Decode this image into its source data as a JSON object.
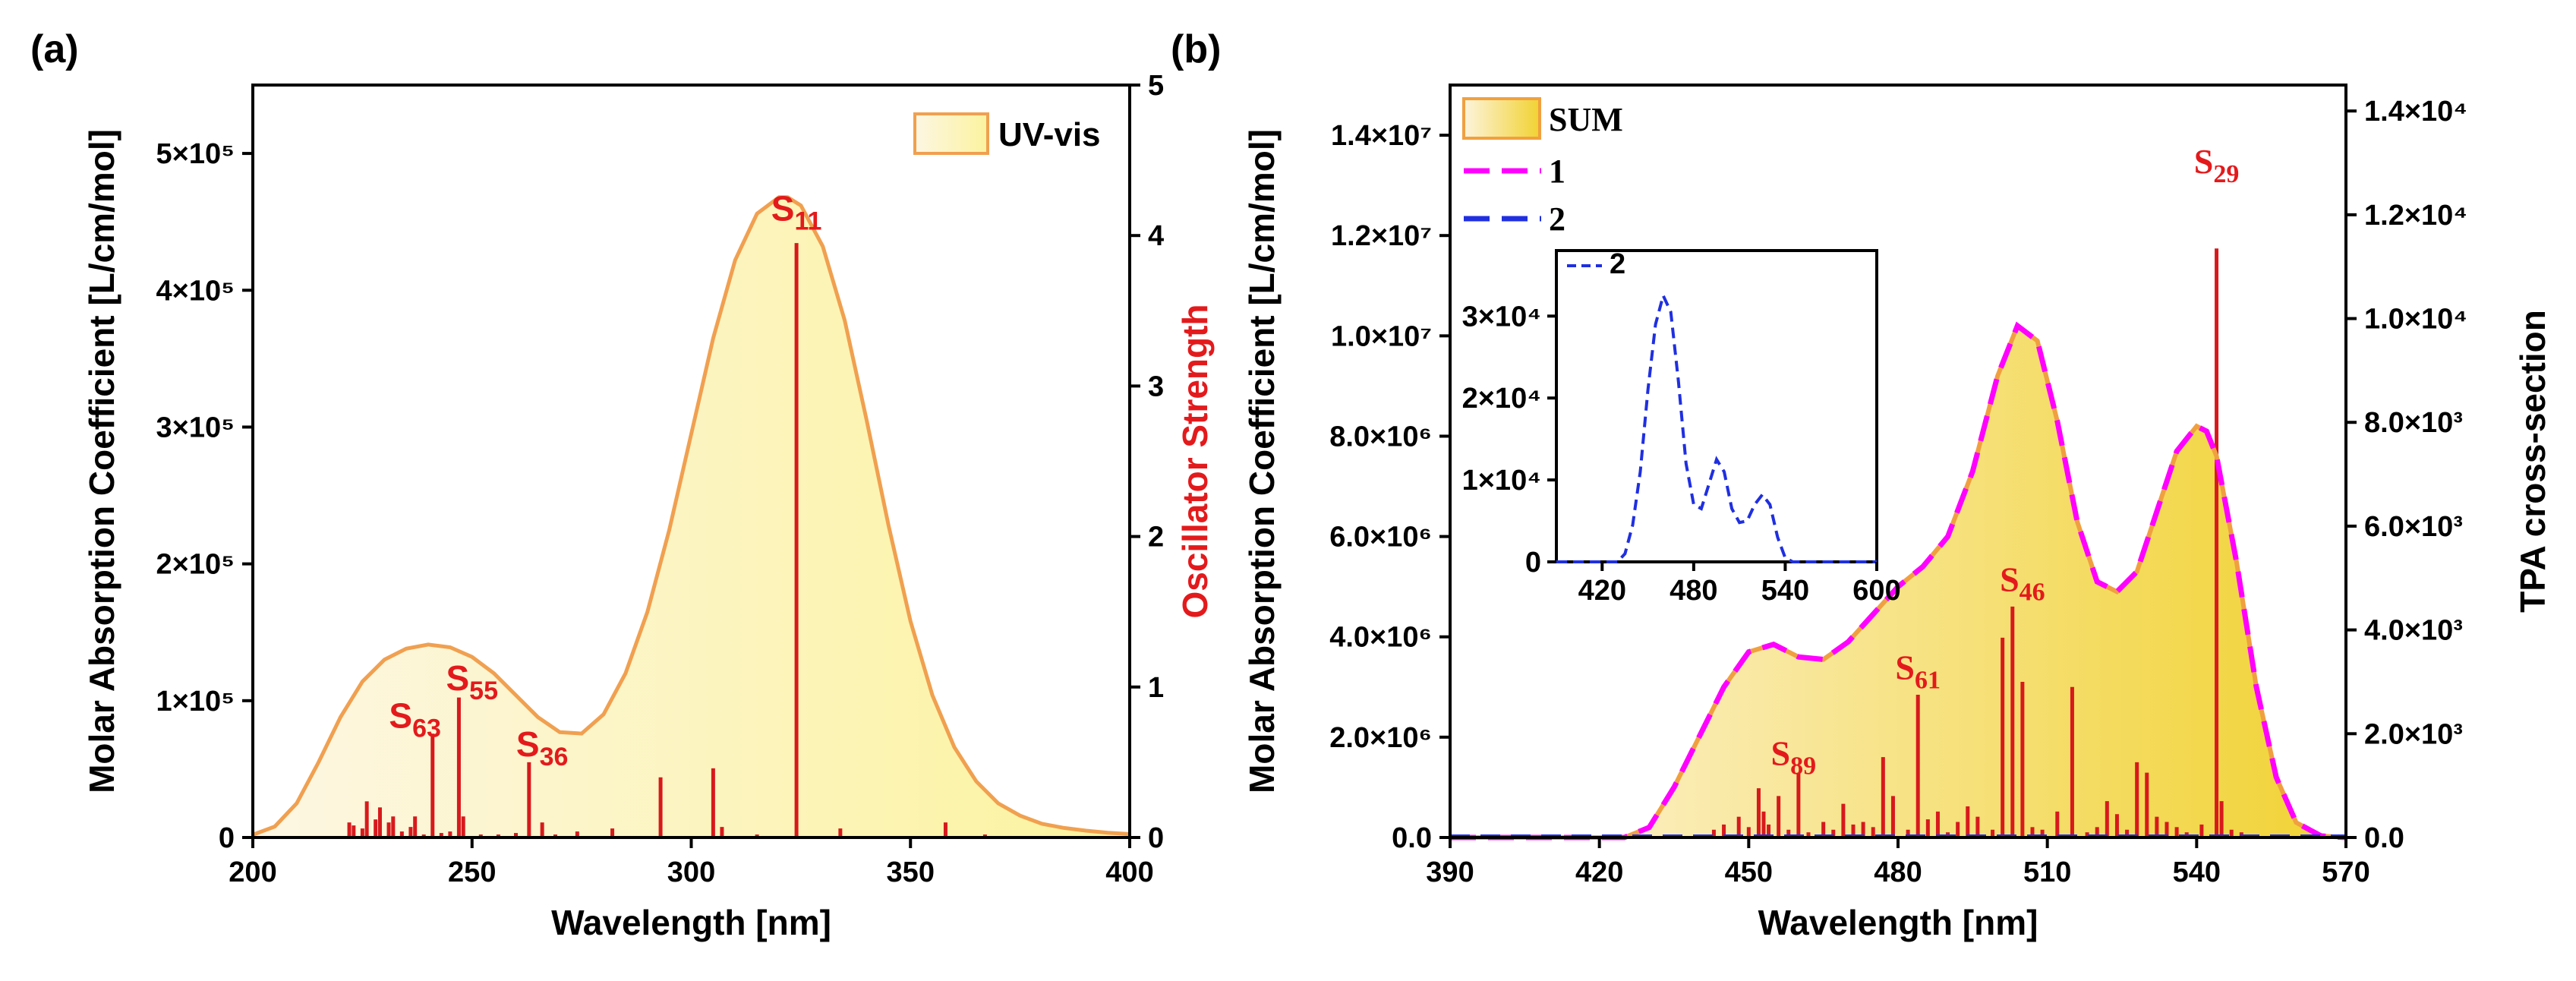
{
  "chart_data": [
    {
      "panel_label": "(a)",
      "type": "area",
      "xlabel": "Wavelength [nm]",
      "ylabel": "Molar Absorption Coefficient [L/cm/mol]",
      "y2label": "Oscillator Strength",
      "xlim": [
        200,
        400
      ],
      "ylim": [
        0,
        550000
      ],
      "y2lim": [
        0,
        5
      ],
      "xticks": [
        "200",
        "250",
        "300",
        "350",
        "400"
      ],
      "xtick_values": [
        200,
        250,
        300,
        350,
        400
      ],
      "yticks": [
        "0",
        "1×10⁵",
        "2×10⁵",
        "3×10⁵",
        "4×10⁵",
        "5×10⁵"
      ],
      "ytick_values": [
        0,
        100000,
        200000,
        300000,
        400000,
        500000
      ],
      "y2ticks": [
        "0",
        "1",
        "2",
        "3",
        "4",
        "5"
      ],
      "y2tick_values": [
        0,
        1,
        2,
        3,
        4,
        5
      ],
      "legend": [
        "UV-vis"
      ],
      "colors": {
        "curve": "#f0a050",
        "fill_light": "#fdf6e3",
        "fill_dark": "#fbf3a6",
        "sticks": "#d7191c"
      },
      "series": [
        {
          "name": "UV-vis",
          "x": [
            200,
            205,
            210,
            215,
            220,
            225,
            230,
            235,
            240,
            245,
            250,
            255,
            260,
            265,
            270,
            275,
            280,
            285,
            290,
            295,
            300,
            305,
            310,
            315,
            320,
            322,
            325,
            330,
            335,
            340,
            345,
            350,
            355,
            360,
            365,
            370,
            375,
            380,
            385,
            390,
            395,
            400
          ],
          "y": [
            2000,
            8000,
            25000,
            55000,
            88000,
            114000,
            130000,
            138000,
            141000,
            139000,
            132000,
            120000,
            104000,
            88000,
            77000,
            76000,
            90000,
            120000,
            165000,
            225000,
            295000,
            365000,
            422000,
            456000,
            468000,
            468000,
            462000,
            432000,
            378000,
            305000,
            228000,
            158000,
            104000,
            66000,
            41000,
            25000,
            16000,
            10000,
            7000,
            5000,
            3500,
            2500
          ]
        }
      ],
      "sticks": {
        "name": "Oscillator Strength",
        "x": [
          222,
          223,
          225,
          226,
          228,
          229,
          231,
          232,
          234,
          236,
          237,
          239,
          241,
          243,
          245,
          247,
          248,
          252,
          256,
          260,
          263,
          266,
          269,
          274,
          282,
          293,
          305,
          307,
          315,
          324,
          334,
          358,
          367,
          378
        ],
        "y": [
          0.1,
          0.08,
          0.06,
          0.24,
          0.12,
          0.2,
          0.1,
          0.14,
          0.04,
          0.07,
          0.14,
          0.02,
          0.69,
          0.03,
          0.04,
          0.93,
          0.14,
          0.02,
          0.02,
          0.03,
          0.5,
          0.1,
          0.02,
          0.04,
          0.06,
          0.4,
          0.46,
          0.07,
          0.02,
          3.95,
          0.06,
          0.1,
          0.02,
          0.01
        ]
      },
      "annotations": [
        {
          "label": "S",
          "sub": "11",
          "x": 324,
          "y": 4.1
        },
        {
          "label": "S",
          "sub": "55",
          "x": 250,
          "y": 0.98
        },
        {
          "label": "S",
          "sub": "63",
          "x": 237,
          "y": 0.73
        },
        {
          "label": "S",
          "sub": "36",
          "x": 266,
          "y": 0.54
        }
      ]
    },
    {
      "panel_label": "(b)",
      "type": "area",
      "xlabel": "Wavelength [nm]",
      "ylabel": "Molar Absorption Coefficient [L/cm/mol]",
      "y2label": "TPA cross-section",
      "xlim": [
        390,
        570
      ],
      "ylim": [
        0,
        15000000
      ],
      "y2lim": [
        0,
        14500
      ],
      "xticks": [
        "390",
        "420",
        "450",
        "480",
        "510",
        "540",
        "570"
      ],
      "xtick_values": [
        390,
        420,
        450,
        480,
        510,
        540,
        570
      ],
      "yticks": [
        "0.0",
        "2.0×10⁶",
        "4.0×10⁶",
        "6.0×10⁶",
        "8.0×10⁶",
        "1.0×10⁷",
        "1.2×10⁷",
        "1.4×10⁷"
      ],
      "ytick_values": [
        0,
        2000000,
        4000000,
        6000000,
        8000000,
        10000000,
        12000000,
        14000000
      ],
      "y2ticks": [
        "0.0",
        "2.0×10³",
        "4.0×10³",
        "6.0×10³",
        "8.0×10³",
        "1.0×10⁴",
        "1.2×10⁴",
        "1.4×10⁴"
      ],
      "y2tick_values": [
        0,
        2000,
        4000,
        6000,
        8000,
        10000,
        12000,
        14000
      ],
      "legend": [
        "SUM",
        "1",
        "2"
      ],
      "colors": {
        "sum_edge": "#f0a040",
        "fill_light": "#fdf4dc",
        "fill_dark": "#f2d53c",
        "series1": "#ff00ff",
        "series2": "#1f2fe0",
        "sticks": "#d7191c"
      },
      "series": [
        {
          "name": "SUM",
          "x": [
            390,
            425,
            430,
            435,
            440,
            445,
            450,
            455,
            460,
            465,
            470,
            475,
            480,
            485,
            490,
            495,
            500,
            504,
            508,
            512,
            516,
            520,
            524,
            528,
            532,
            536,
            540,
            542,
            544,
            548,
            552,
            556,
            560,
            565,
            570
          ],
          "y": [
            0,
            0,
            200000,
            1000000,
            2000000,
            3000000,
            3700000,
            3850000,
            3600000,
            3550000,
            3900000,
            4450000,
            5000000,
            5400000,
            6000000,
            7300000,
            9200000,
            10200000,
            9900000,
            8300000,
            6300000,
            5100000,
            4900000,
            5300000,
            6500000,
            7700000,
            8200000,
            8100000,
            7600000,
            5500000,
            3000000,
            1200000,
            300000,
            30000,
            0
          ]
        },
        {
          "name": "1",
          "x": [
            390,
            425,
            430,
            435,
            440,
            445,
            450,
            455,
            460,
            465,
            470,
            475,
            480,
            485,
            490,
            495,
            500,
            504,
            508,
            512,
            516,
            520,
            524,
            528,
            532,
            536,
            540,
            542,
            544,
            548,
            552,
            556,
            560,
            565,
            570
          ],
          "y": [
            0,
            0,
            200000,
            1000000,
            2000000,
            3000000,
            3700000,
            3850000,
            3600000,
            3550000,
            3900000,
            4450000,
            5000000,
            5400000,
            6000000,
            7300000,
            9200000,
            10200000,
            9900000,
            8300000,
            6300000,
            5100000,
            4900000,
            5300000,
            6500000,
            7700000,
            8200000,
            8100000,
            7600000,
            5500000,
            3000000,
            1200000,
            300000,
            30000,
            0
          ]
        },
        {
          "name": "2",
          "x": [
            390,
            570
          ],
          "y": [
            0,
            0
          ]
        }
      ],
      "sticks": {
        "name": "TPA cross-section",
        "x": [
          443,
          445,
          448,
          450,
          452,
          453,
          454,
          456,
          458,
          460,
          462,
          465,
          467,
          469,
          471,
          473,
          475,
          477,
          479,
          482,
          484,
          486,
          488,
          490,
          492,
          494,
          496,
          499,
          501,
          503,
          505,
          507,
          509,
          512,
          515,
          518,
          520,
          522,
          524,
          526,
          528,
          530,
          532,
          534,
          536,
          538,
          541,
          544,
          545,
          547,
          549
        ],
        "y": [
          150,
          250,
          400,
          200,
          950,
          500,
          250,
          800,
          150,
          1250,
          100,
          300,
          150,
          650,
          250,
          300,
          200,
          1550,
          800,
          150,
          2750,
          350,
          500,
          100,
          300,
          600,
          400,
          150,
          3850,
          4450,
          3000,
          200,
          150,
          500,
          2900,
          100,
          200,
          700,
          450,
          150,
          1450,
          1250,
          400,
          300,
          200,
          100,
          250,
          11350,
          700,
          150,
          100
        ]
      },
      "annotations": [
        {
          "label": "S",
          "sub": "29",
          "x": 544,
          "y": 12800
        },
        {
          "label": "S",
          "sub": "46",
          "x": 505,
          "y": 4750
        },
        {
          "label": "S",
          "sub": "61",
          "x": 484,
          "y": 3050
        },
        {
          "label": "S",
          "sub": "89",
          "x": 459,
          "y": 1400
        }
      ],
      "inset": {
        "type": "line",
        "xlim": [
          390,
          600
        ],
        "ylim": [
          0,
          38000
        ],
        "xticks": [
          "420",
          "480",
          "540",
          "600"
        ],
        "xtick_values": [
          420,
          480,
          540,
          600
        ],
        "yticks": [
          "0",
          "1×10⁴",
          "2×10⁴",
          "3×10⁴"
        ],
        "ytick_values": [
          0,
          10000,
          20000,
          30000
        ],
        "legend": [
          "2"
        ],
        "series": [
          {
            "name": "2",
            "x": [
              390,
              425,
              430,
              435,
              440,
              445,
              450,
              455,
              460,
              465,
              470,
              475,
              480,
              485,
              490,
              495,
              500,
              505,
              510,
              515,
              520,
              525,
              530,
              535,
              540,
              545,
              550,
              560,
              570,
              580,
              590,
              600
            ],
            "y": [
              0,
              0,
              0,
              1000,
              4500,
              11000,
              21000,
              29000,
              32500,
              30500,
              22000,
              12000,
              7000,
              6500,
              9500,
              12500,
              11000,
              6500,
              4800,
              5000,
              7000,
              8200,
              7000,
              3000,
              500,
              0,
              0,
              0,
              0,
              0,
              0,
              0
            ]
          }
        ]
      }
    }
  ]
}
